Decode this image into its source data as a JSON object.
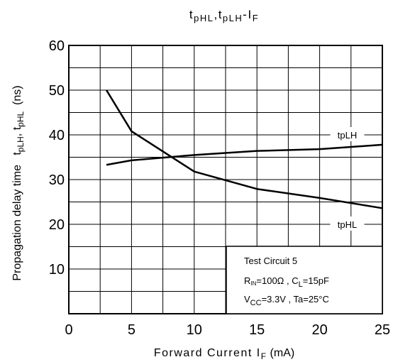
{
  "chart_data": {
    "type": "line",
    "title": {
      "main": "t",
      "sub1": "pHL",
      "sep": ",",
      "main2": "t",
      "sub2": "pLH",
      "dash": "-",
      "main3": "I",
      "sub3": "F"
    },
    "xlabel": {
      "main": "Forward Current I",
      "sub": "F",
      "suffix": "(mA)"
    },
    "ylabel": {
      "prefix": "Propagation delay time   t",
      "sub1": "pLH",
      "sep": ", t",
      "sub2": "pHL",
      "suffix": "  (ns)"
    },
    "xlim": [
      0,
      25
    ],
    "ylim": [
      0,
      60
    ],
    "x_ticks": [
      0,
      5,
      10,
      15,
      20,
      25
    ],
    "y_ticks": [
      10,
      20,
      30,
      40,
      50,
      60
    ],
    "x_tick_labels": [
      "0",
      "5",
      "10",
      "15",
      "20",
      "25"
    ],
    "y_tick_labels": [
      "10",
      "20",
      "30",
      "40",
      "50",
      "60"
    ],
    "grid": true,
    "series": [
      {
        "name": "tpLH",
        "x": [
          3,
          5,
          10,
          15,
          20,
          25
        ],
        "y": [
          33.3,
          34.3,
          35.5,
          36.4,
          36.8,
          37.8
        ]
      },
      {
        "name": "tpHL",
        "x": [
          3,
          5,
          10,
          15,
          20,
          25
        ],
        "y": [
          50,
          40.8,
          31.8,
          27.9,
          25.9,
          23.6
        ]
      }
    ],
    "series_labels": [
      {
        "text": "tpLH",
        "x": 22.2,
        "y": 40
      },
      {
        "text": "tpHL",
        "x": 22.2,
        "y": 20
      }
    ],
    "annotation_box": {
      "line1": "Test Circuit 5",
      "line2": {
        "a": "R",
        "a_sub": "IN",
        "b": "=100Ω , C",
        "b_sub": "L",
        "c": "=15pF"
      },
      "line3": {
        "a": "V",
        "a_sub": "CC",
        "b": "=3.3V , Ta=25°C"
      }
    }
  }
}
